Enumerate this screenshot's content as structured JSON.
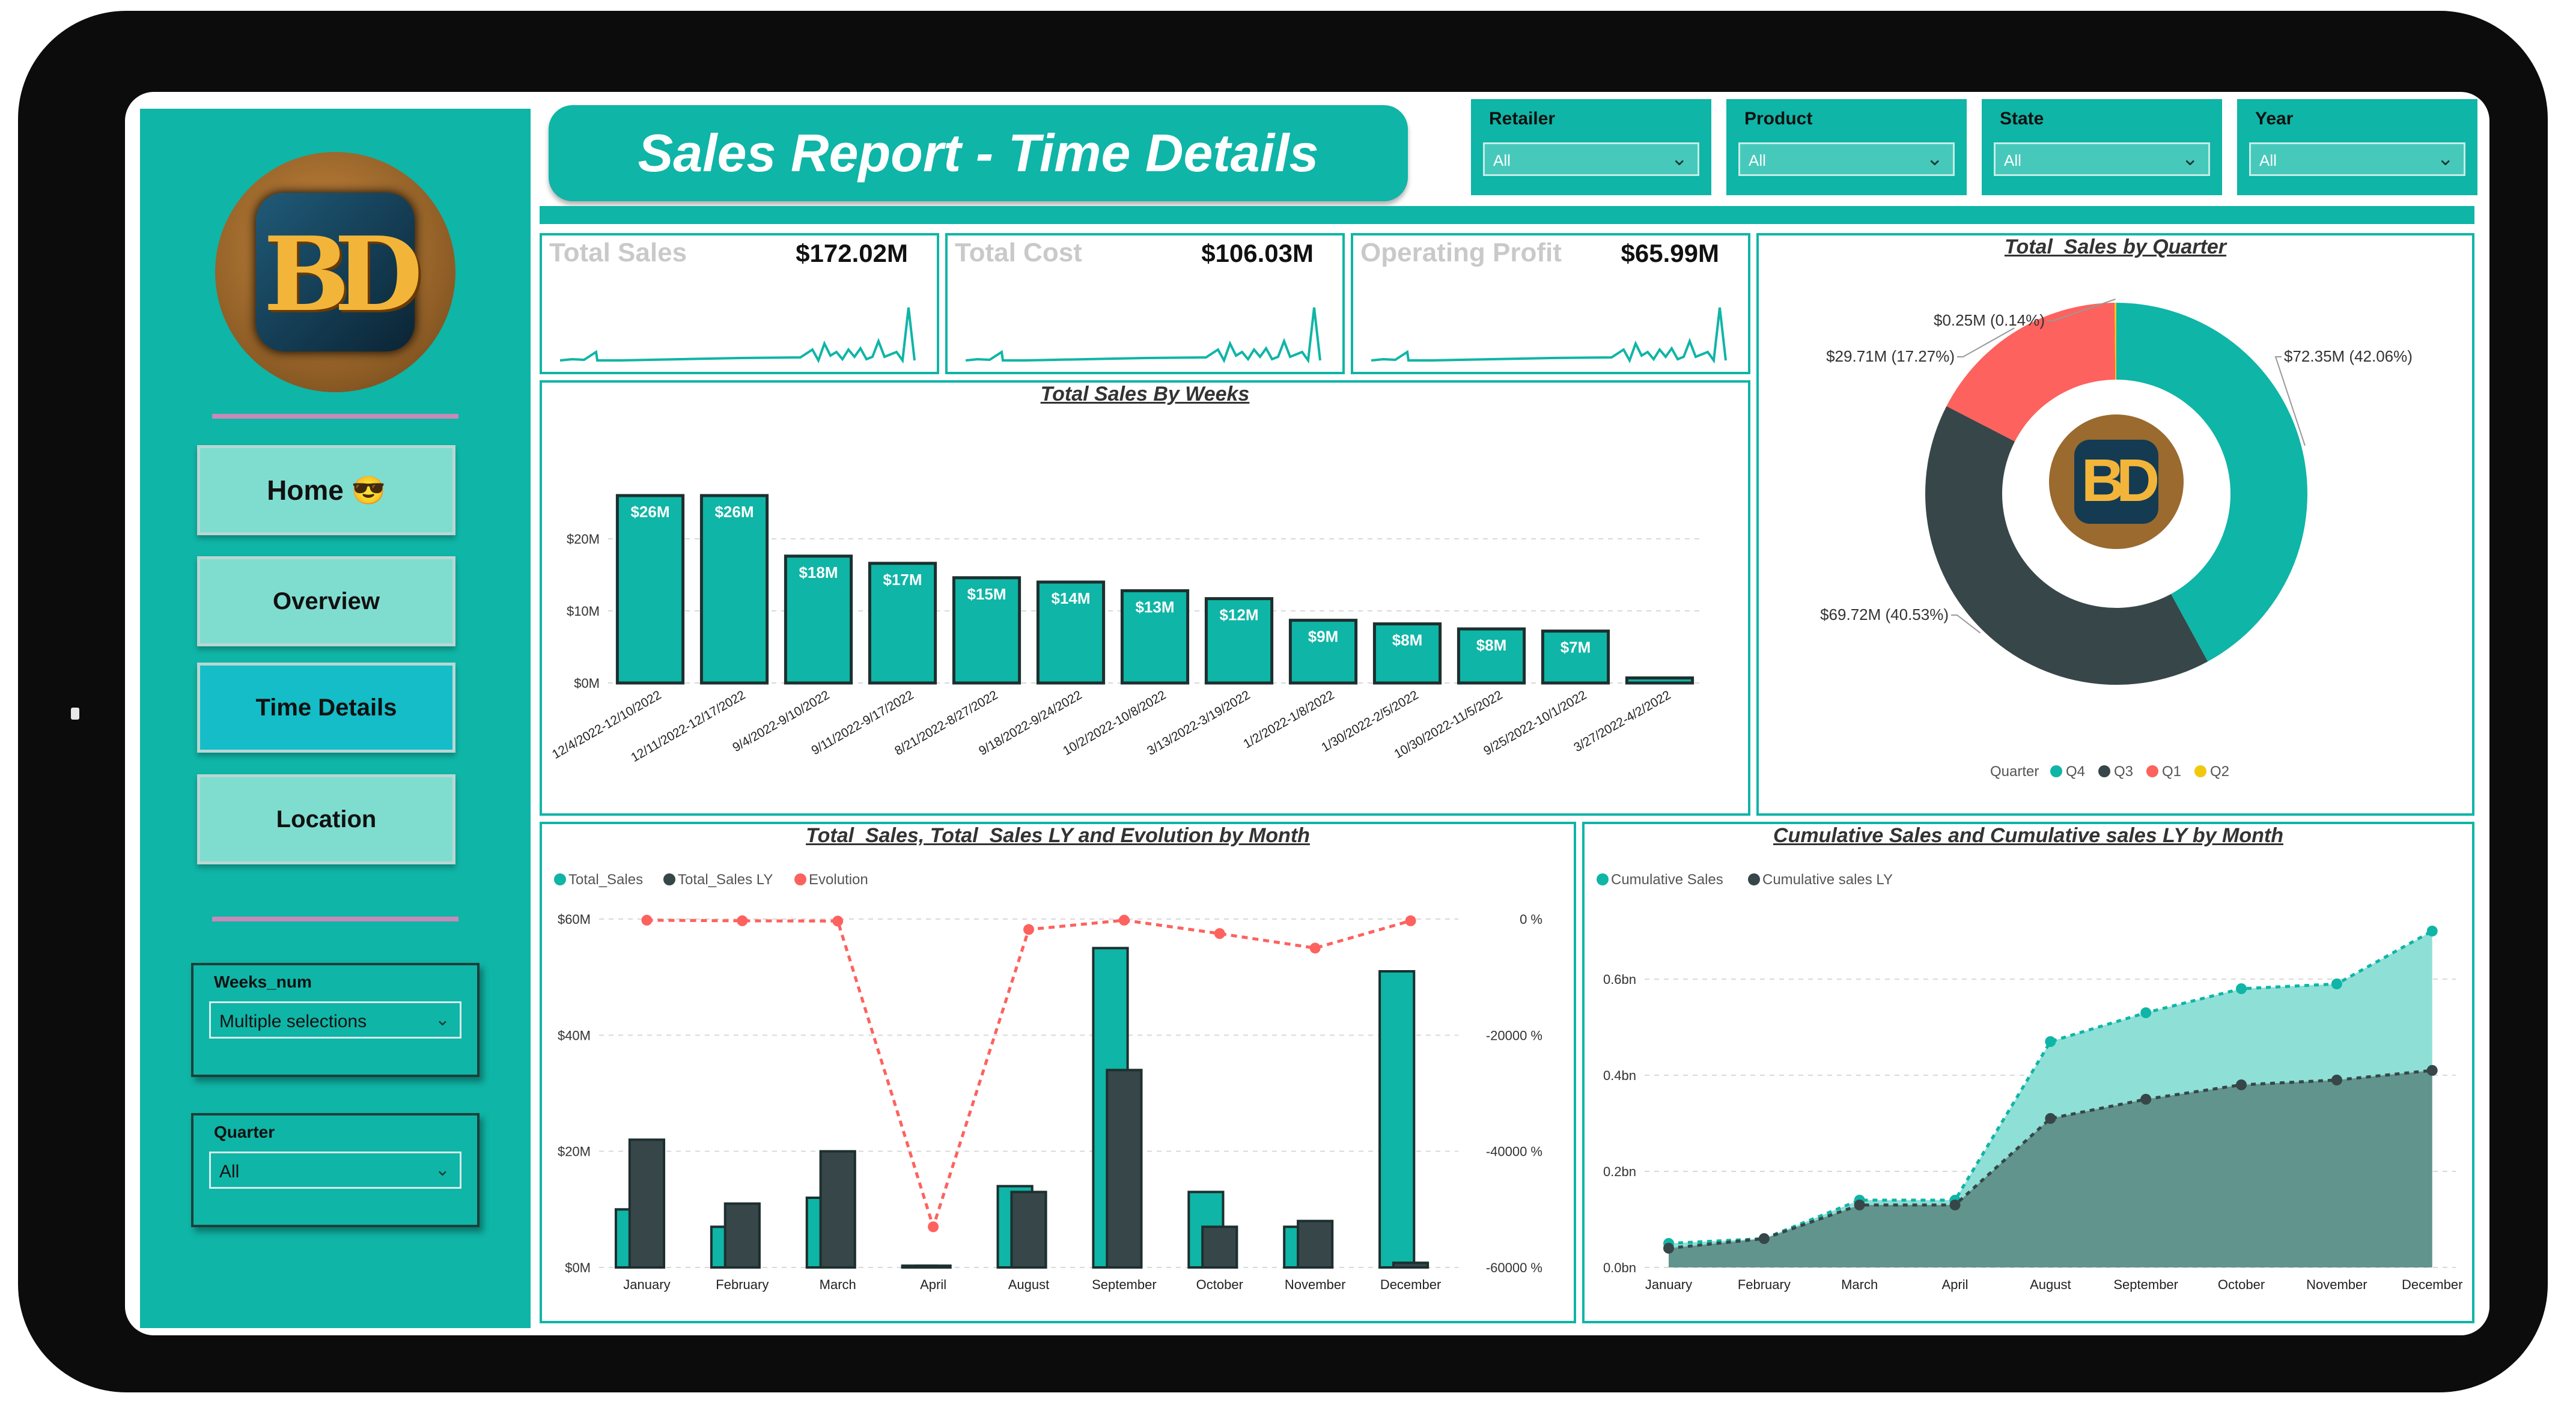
{
  "app": {
    "title": "Sales Report - Time Details"
  },
  "sidebar": {
    "nav": [
      {
        "label": "Home 😎"
      },
      {
        "label": "Overview"
      },
      {
        "label": "Time Details"
      },
      {
        "label": "Location"
      }
    ],
    "slicers": [
      {
        "label": "Weeks_num",
        "value": "Multiple selections"
      },
      {
        "label": "Quarter",
        "value": "All"
      }
    ]
  },
  "filters": [
    {
      "label": "Retailer",
      "value": "All"
    },
    {
      "label": "Product",
      "value": "All"
    },
    {
      "label": "State",
      "value": "All"
    },
    {
      "label": "Year",
      "value": "All"
    }
  ],
  "kpis": [
    {
      "label": "Total Sales",
      "value": "$172.02M"
    },
    {
      "label": "Total Cost",
      "value": "$106.03M"
    },
    {
      "label": "Operating Profit",
      "value": "$65.99M"
    }
  ],
  "colors": {
    "teal": "#0fb5a6",
    "dark": "#374649",
    "red": "#fd625e",
    "yellow": "#f2c80f",
    "light_teal": "#8ee0d7"
  },
  "chart_data": [
    {
      "type": "bar",
      "title": "Total Sales By Weeks",
      "categories": [
        "12/4/2022-12/10/2022",
        "12/11/2022-12/17/2022",
        "9/4/2022-9/10/2022",
        "9/11/2022-9/17/2022",
        "8/21/2022-8/27/2022",
        "9/18/2022-9/24/2022",
        "10/2/2022-10/8/2022",
        "3/13/2022-3/19/2022",
        "1/2/2022-1/8/2022",
        "1/30/2022-2/5/2022",
        "10/30/2022-11/5/2022",
        "9/25/2022-10/1/2022",
        "3/27/2022-4/2/2022"
      ],
      "values": [
        26,
        26,
        17.6,
        16.6,
        14.6,
        14.0,
        12.8,
        11.7,
        8.7,
        8.2,
        7.5,
        7.2,
        0.7
      ],
      "data_labels": [
        "$26M",
        "$26M",
        "$18M",
        "$17M",
        "$15M",
        "$14M",
        "$13M",
        "$12M",
        "$9M",
        "$8M",
        "$8M",
        "$7M",
        ""
      ],
      "ylim": [
        0,
        30
      ],
      "yticks": [
        "$0M",
        "$10M",
        "$20M"
      ],
      "grid": true
    },
    {
      "type": "pie",
      "title": "Total_Sales by Quarter",
      "slices": [
        {
          "name": "Q4",
          "value": 72.35,
          "label": "$72.35M (42.06%)"
        },
        {
          "name": "Q3",
          "value": 69.72,
          "label": "$69.72M (40.53%)"
        },
        {
          "name": "Q1",
          "value": 29.71,
          "label": "$29.71M (17.27%)"
        },
        {
          "name": "Q2",
          "value": 0.25,
          "label": "$0.25M (0.14%)"
        }
      ],
      "legend_title": "Quarter",
      "legend_position": "bottom"
    },
    {
      "type": "bar",
      "title": "Total_Sales, Total_Sales LY and Evolution by Month",
      "categories": [
        "January",
        "February",
        "March",
        "April",
        "August",
        "September",
        "October",
        "November",
        "December"
      ],
      "series": [
        {
          "name": "Total_Sales",
          "values": [
            10,
            7,
            12,
            0.3,
            14,
            55,
            13,
            7,
            51
          ]
        },
        {
          "name": "Total_Sales LY",
          "values": [
            22,
            11,
            20,
            0.3,
            13,
            34,
            7,
            8,
            0.8
          ]
        },
        {
          "name": "Evolution",
          "values": [
            -200,
            -300,
            -350,
            -53000,
            -1800,
            -200,
            -2500,
            -5000,
            -300
          ]
        }
      ],
      "ylim": [
        0,
        60
      ],
      "yticks": [
        "$0M",
        "$20M",
        "$40M",
        "$60M"
      ],
      "y2lim": [
        -60000,
        0
      ],
      "y2ticks": [
        "-60000 %",
        "-40000 %",
        "-20000 %",
        "0 %"
      ],
      "legend_position": "top-left",
      "grid": true
    },
    {
      "type": "area",
      "title": "Cumulative Sales and Cumulative sales LY by Month",
      "categories": [
        "January",
        "February",
        "March",
        "April",
        "August",
        "September",
        "October",
        "November",
        "December"
      ],
      "series": [
        {
          "name": "Cumulative Sales",
          "values": [
            0.05,
            0.06,
            0.14,
            0.14,
            0.47,
            0.53,
            0.58,
            0.59,
            0.7
          ]
        },
        {
          "name": "Cumulative sales LY",
          "values": [
            0.04,
            0.06,
            0.13,
            0.13,
            0.31,
            0.35,
            0.38,
            0.39,
            0.41
          ]
        }
      ],
      "ylim": [
        0,
        0.75
      ],
      "yticks": [
        "0.0bn",
        "0.2bn",
        "0.4bn",
        "0.6bn"
      ],
      "legend_position": "top-left",
      "grid": true
    }
  ]
}
